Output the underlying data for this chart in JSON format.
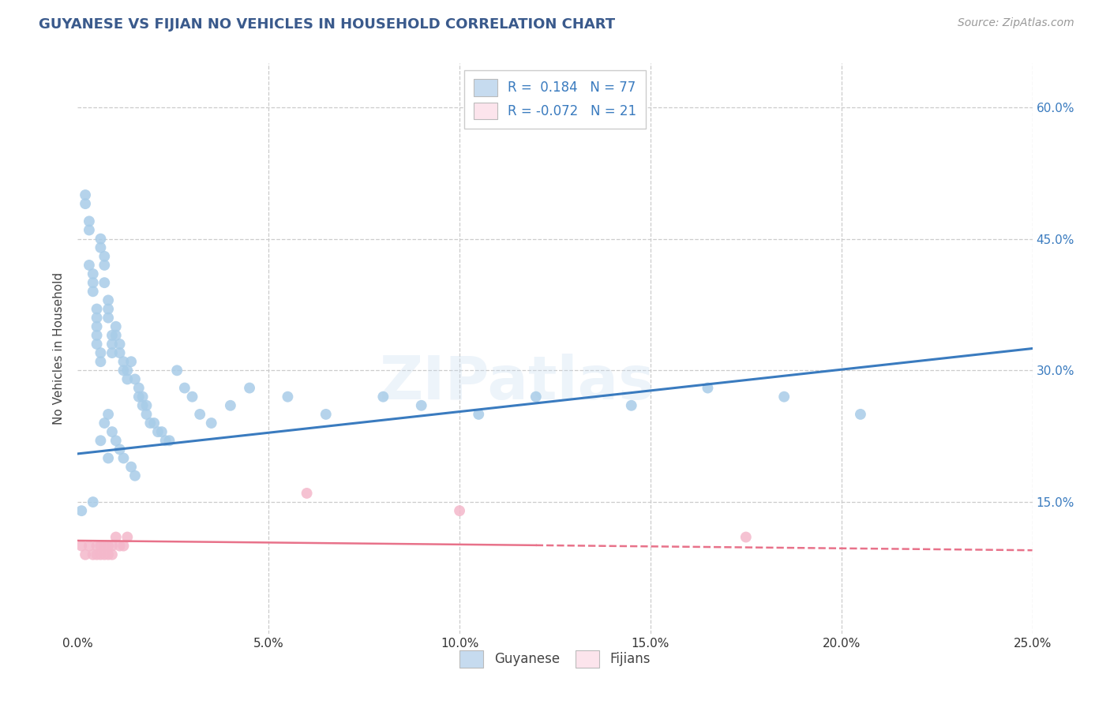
{
  "title": "GUYANESE VS FIJIAN NO VEHICLES IN HOUSEHOLD CORRELATION CHART",
  "source": "Source: ZipAtlas.com",
  "ylabel": "No Vehicles in Household",
  "xlim": [
    0.0,
    0.25
  ],
  "ylim": [
    0.0,
    0.65
  ],
  "xtick_labels": [
    "0.0%",
    "5.0%",
    "10.0%",
    "15.0%",
    "20.0%",
    "25.0%"
  ],
  "xtick_values": [
    0.0,
    0.05,
    0.1,
    0.15,
    0.2,
    0.25
  ],
  "ytick_labels": [
    "15.0%",
    "30.0%",
    "45.0%",
    "60.0%"
  ],
  "ytick_values": [
    0.15,
    0.3,
    0.45,
    0.6
  ],
  "guyanese_r": 0.184,
  "guyanese_n": 77,
  "fijian_r": -0.072,
  "fijian_n": 21,
  "blue_scatter": "#a8cce8",
  "pink_scatter": "#f4b8cb",
  "blue_line": "#3a7bbf",
  "pink_line": "#e8728a",
  "blue_legend_fill": "#c6dbef",
  "pink_legend_fill": "#fce4ec",
  "title_color": "#3a5a8c",
  "source_color": "#999999",
  "watermark": "ZIPatlas",
  "guyanese_x": [
    0.001,
    0.002,
    0.002,
    0.003,
    0.003,
    0.003,
    0.004,
    0.004,
    0.004,
    0.004,
    0.005,
    0.005,
    0.005,
    0.005,
    0.005,
    0.006,
    0.006,
    0.006,
    0.006,
    0.006,
    0.007,
    0.007,
    0.007,
    0.007,
    0.008,
    0.008,
    0.008,
    0.008,
    0.008,
    0.009,
    0.009,
    0.009,
    0.009,
    0.01,
    0.01,
    0.01,
    0.011,
    0.011,
    0.011,
    0.012,
    0.012,
    0.012,
    0.013,
    0.013,
    0.014,
    0.014,
    0.015,
    0.015,
    0.016,
    0.016,
    0.017,
    0.017,
    0.018,
    0.018,
    0.019,
    0.02,
    0.021,
    0.022,
    0.023,
    0.024,
    0.026,
    0.028,
    0.03,
    0.032,
    0.035,
    0.04,
    0.045,
    0.055,
    0.065,
    0.08,
    0.09,
    0.105,
    0.12,
    0.145,
    0.165,
    0.185,
    0.205
  ],
  "guyanese_y": [
    0.14,
    0.5,
    0.49,
    0.47,
    0.46,
    0.42,
    0.41,
    0.4,
    0.39,
    0.15,
    0.37,
    0.36,
    0.35,
    0.34,
    0.33,
    0.45,
    0.44,
    0.32,
    0.31,
    0.22,
    0.43,
    0.42,
    0.4,
    0.24,
    0.38,
    0.37,
    0.36,
    0.25,
    0.2,
    0.34,
    0.33,
    0.32,
    0.23,
    0.35,
    0.34,
    0.22,
    0.33,
    0.32,
    0.21,
    0.31,
    0.3,
    0.2,
    0.3,
    0.29,
    0.31,
    0.19,
    0.29,
    0.18,
    0.28,
    0.27,
    0.27,
    0.26,
    0.26,
    0.25,
    0.24,
    0.24,
    0.23,
    0.23,
    0.22,
    0.22,
    0.3,
    0.28,
    0.27,
    0.25,
    0.24,
    0.26,
    0.28,
    0.27,
    0.25,
    0.27,
    0.26,
    0.25,
    0.27,
    0.26,
    0.28,
    0.27,
    0.25
  ],
  "fijian_x": [
    0.001,
    0.002,
    0.003,
    0.004,
    0.005,
    0.005,
    0.006,
    0.006,
    0.007,
    0.007,
    0.008,
    0.008,
    0.009,
    0.009,
    0.01,
    0.011,
    0.012,
    0.013,
    0.06,
    0.1,
    0.175
  ],
  "fijian_y": [
    0.1,
    0.09,
    0.1,
    0.09,
    0.1,
    0.09,
    0.1,
    0.09,
    0.1,
    0.09,
    0.1,
    0.09,
    0.1,
    0.09,
    0.11,
    0.1,
    0.1,
    0.11,
    0.16,
    0.14,
    0.11
  ],
  "blue_line_y0": 0.205,
  "blue_line_y1": 0.325,
  "pink_line_y0": 0.106,
  "pink_line_y1": 0.095
}
